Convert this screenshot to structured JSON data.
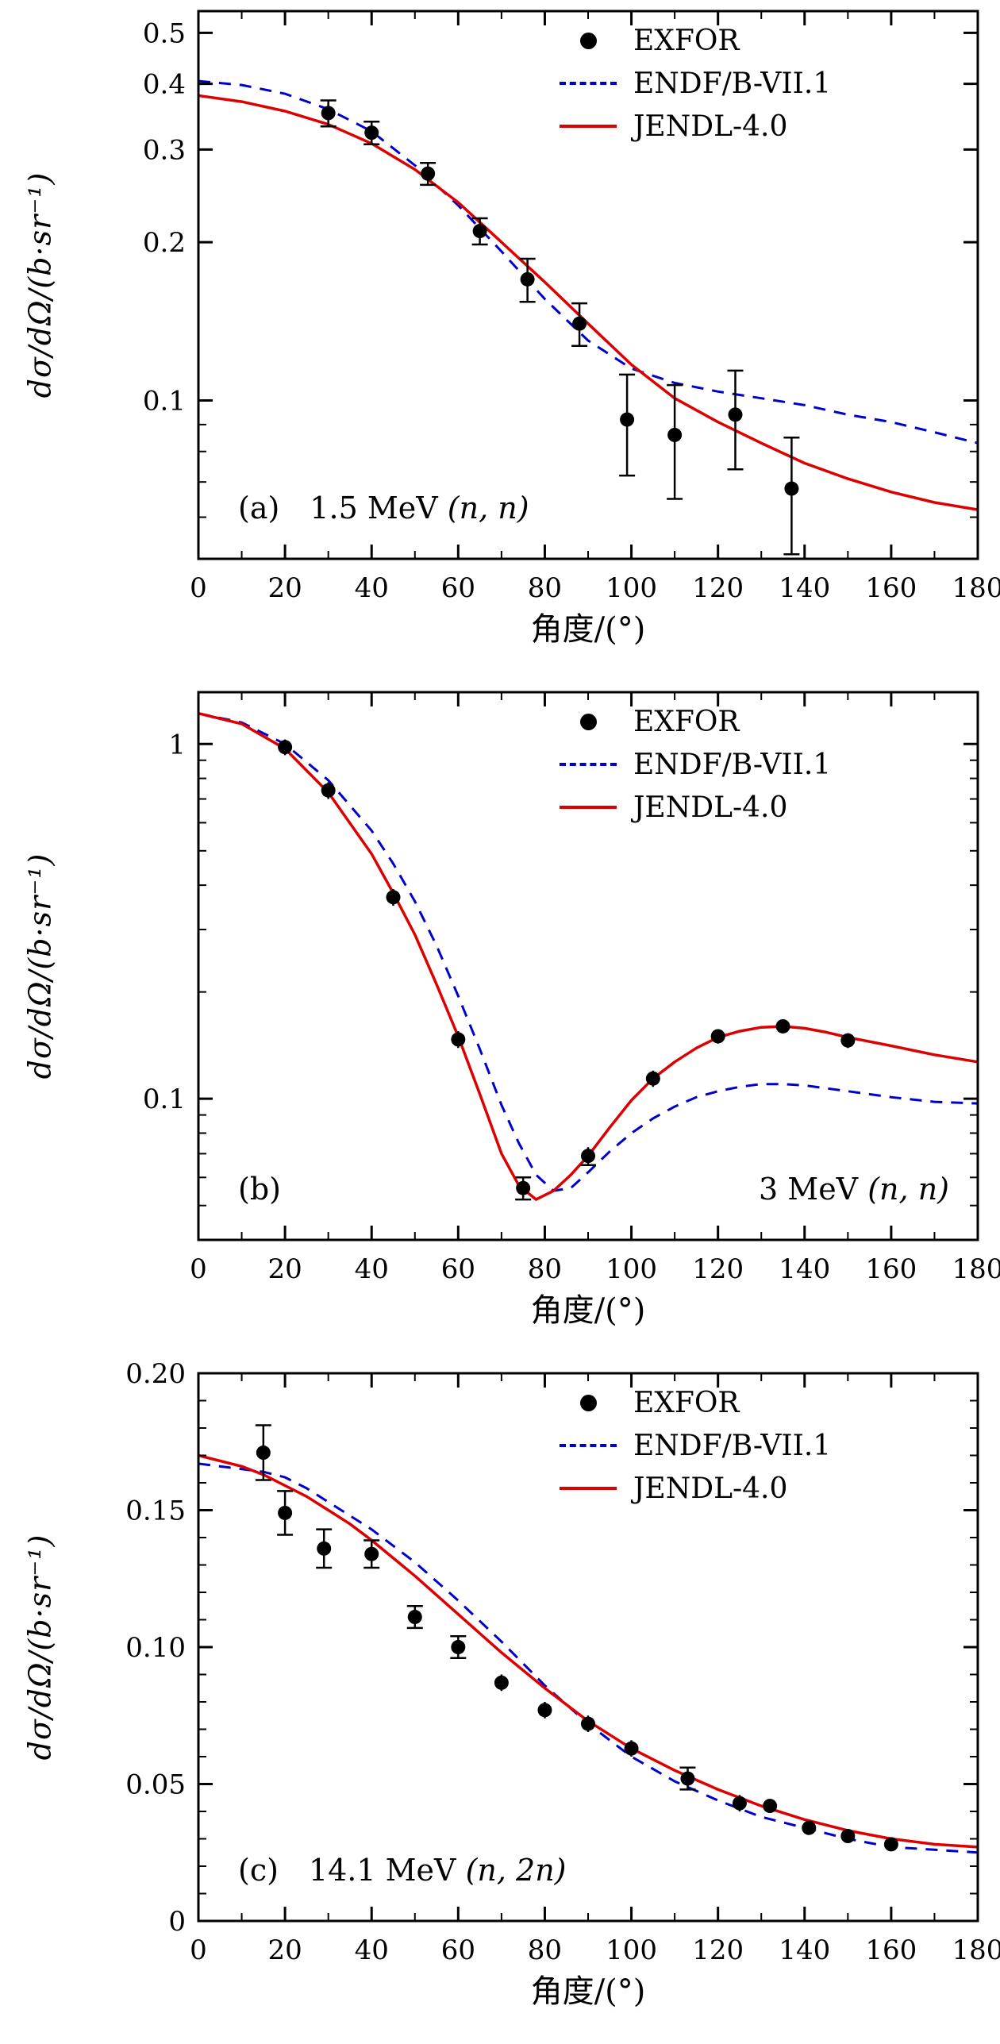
{
  "chart_data": [
    {
      "type": "line",
      "panel": "(a)",
      "energy": "1.5 MeV",
      "reaction": "(n, n)",
      "xlabel": "角度/(°)",
      "ylabel": "dσ/dΩ/(b·sr⁻¹)",
      "xlim": [
        0,
        180
      ],
      "xticks": [
        0,
        20,
        40,
        60,
        80,
        100,
        120,
        140,
        160,
        180
      ],
      "xminor": [
        10,
        30,
        50,
        70,
        90,
        110,
        130,
        150,
        170
      ],
      "yscale": "log",
      "ylim": [
        0.05,
        0.55
      ],
      "yticks": [
        {
          "v": 0.5,
          "label": "0.5"
        },
        {
          "v": 0.4,
          "label": "0.4"
        },
        {
          "v": 0.3,
          "label": "0.3"
        },
        {
          "v": 0.2,
          "label": "0.2"
        },
        {
          "v": 0.1,
          "label": "0.1"
        }
      ],
      "yminor": [
        0.09,
        0.08,
        0.07,
        0.06
      ],
      "legend_position": "top-right",
      "grid": false,
      "series": [
        {
          "name": "EXFOR",
          "style": "points",
          "color": "#000000",
          "points": [
            [
              30,
              0.352,
              0.02
            ],
            [
              40,
              0.323,
              0.016
            ],
            [
              53,
              0.27,
              0.013
            ],
            [
              65,
              0.21,
              0.012
            ],
            [
              76,
              0.17,
              0.016
            ],
            [
              88,
              0.14,
              0.013
            ],
            [
              99,
              0.092,
              0.02
            ],
            [
              110,
              0.086,
              0.021
            ],
            [
              124,
              0.094,
              0.02
            ],
            [
              137,
              0.068,
              0.017
            ]
          ]
        },
        {
          "name": "ENDF/B-VII.1",
          "style": "dashed",
          "color": "#0000cd",
          "x": [
            0,
            10,
            20,
            30,
            40,
            50,
            60,
            70,
            80,
            90,
            100,
            110,
            120,
            130,
            140,
            150,
            160,
            170,
            180
          ],
          "y": [
            0.405,
            0.398,
            0.383,
            0.358,
            0.325,
            0.28,
            0.235,
            0.192,
            0.156,
            0.13,
            0.115,
            0.108,
            0.104,
            0.101,
            0.098,
            0.094,
            0.091,
            0.087,
            0.083
          ]
        },
        {
          "name": "JENDL-4.0",
          "style": "solid",
          "color": "#dd0000",
          "x": [
            0,
            10,
            20,
            30,
            40,
            50,
            60,
            70,
            80,
            90,
            100,
            110,
            120,
            130,
            140,
            150,
            160,
            170,
            180
          ],
          "y": [
            0.38,
            0.37,
            0.355,
            0.335,
            0.308,
            0.275,
            0.238,
            0.2,
            0.168,
            0.14,
            0.117,
            0.101,
            0.091,
            0.083,
            0.076,
            0.071,
            0.067,
            0.064,
            0.062
          ]
        }
      ]
    },
    {
      "type": "line",
      "panel": "(b)",
      "energy": "3 MeV",
      "reaction": "(n, n)",
      "xlabel": "角度/(°)",
      "ylabel": "dσ/dΩ/(b·sr⁻¹)",
      "xlim": [
        0,
        180
      ],
      "xticks": [
        0,
        20,
        40,
        60,
        80,
        100,
        120,
        140,
        160,
        180
      ],
      "xminor": [
        10,
        30,
        50,
        70,
        90,
        110,
        130,
        150,
        170
      ],
      "yscale": "log",
      "ylim": [
        0.04,
        1.4
      ],
      "yticks": [
        {
          "v": 1,
          "label": "1"
        },
        {
          "v": 0.1,
          "label": "0.1"
        }
      ],
      "yminor": [
        0.9,
        0.8,
        0.7,
        0.6,
        0.5,
        0.4,
        0.3,
        0.2,
        0.09,
        0.08,
        0.07,
        0.06,
        0.05
      ],
      "legend_position": "top-right",
      "grid": false,
      "series": [
        {
          "name": "EXFOR",
          "style": "points",
          "color": "#000000",
          "points": [
            [
              20,
              0.98,
              0.05
            ],
            [
              30,
              0.74,
              0.04
            ],
            [
              45,
              0.37,
              0.02
            ],
            [
              60,
              0.147,
              0.008
            ],
            [
              75,
              0.056,
              0.004
            ],
            [
              90,
              0.069,
              0.004
            ],
            [
              105,
              0.114,
              0.006
            ],
            [
              120,
              0.15,
              0.007
            ],
            [
              135,
              0.16,
              0.007
            ],
            [
              150,
              0.146,
              0.007
            ]
          ]
        },
        {
          "name": "ENDF/B-VII.1",
          "style": "dashed",
          "color": "#0000cd",
          "x": [
            0,
            10,
            20,
            30,
            40,
            45,
            50,
            55,
            60,
            65,
            70,
            74,
            78,
            82,
            86,
            90,
            95,
            100,
            105,
            110,
            115,
            120,
            125,
            130,
            135,
            140,
            145,
            150,
            160,
            170,
            180
          ],
          "y": [
            1.22,
            1.15,
            1.0,
            0.79,
            0.57,
            0.46,
            0.36,
            0.27,
            0.195,
            0.138,
            0.096,
            0.075,
            0.061,
            0.055,
            0.056,
            0.062,
            0.071,
            0.08,
            0.088,
            0.095,
            0.101,
            0.105,
            0.108,
            0.11,
            0.11,
            0.109,
            0.107,
            0.105,
            0.101,
            0.098,
            0.097
          ]
        },
        {
          "name": "JENDL-4.0",
          "style": "solid",
          "color": "#dd0000",
          "x": [
            0,
            10,
            20,
            30,
            40,
            45,
            50,
            55,
            60,
            65,
            70,
            74,
            78,
            82,
            86,
            90,
            95,
            100,
            105,
            110,
            115,
            120,
            125,
            130,
            135,
            140,
            145,
            150,
            160,
            170,
            180
          ],
          "y": [
            1.22,
            1.14,
            0.97,
            0.73,
            0.49,
            0.38,
            0.29,
            0.21,
            0.15,
            0.103,
            0.07,
            0.057,
            0.052,
            0.055,
            0.061,
            0.069,
            0.083,
            0.099,
            0.114,
            0.127,
            0.139,
            0.149,
            0.155,
            0.159,
            0.16,
            0.158,
            0.154,
            0.149,
            0.141,
            0.133,
            0.127
          ]
        }
      ]
    },
    {
      "type": "line",
      "panel": "(c)",
      "energy": "14.1 MeV",
      "reaction": "(n, 2n)",
      "xlabel": "角度/(°)",
      "ylabel": "dσ/dΩ/(b·sr⁻¹)",
      "xlim": [
        0,
        180
      ],
      "xticks": [
        0,
        20,
        40,
        60,
        80,
        100,
        120,
        140,
        160,
        180
      ],
      "xminor": [
        10,
        30,
        50,
        70,
        90,
        110,
        130,
        150,
        170
      ],
      "yscale": "linear",
      "ylim": [
        0,
        0.2
      ],
      "yticks": [
        {
          "v": 0.2,
          "label": "0.20"
        },
        {
          "v": 0.15,
          "label": "0.15"
        },
        {
          "v": 0.1,
          "label": "0.10"
        },
        {
          "v": 0.05,
          "label": "0.05"
        },
        {
          "v": 0,
          "label": "0"
        }
      ],
      "yminor": [
        0.01,
        0.02,
        0.03,
        0.04,
        0.06,
        0.07,
        0.08,
        0.09,
        0.11,
        0.12,
        0.13,
        0.14,
        0.16,
        0.17,
        0.18,
        0.19
      ],
      "legend_position": "top-right",
      "grid": false,
      "series": [
        {
          "name": "EXFOR",
          "style": "points",
          "color": "#000000",
          "points": [
            [
              15,
              0.171,
              0.01
            ],
            [
              20,
              0.149,
              0.008
            ],
            [
              29,
              0.136,
              0.007
            ],
            [
              40,
              0.134,
              0.005
            ],
            [
              50,
              0.111,
              0.004
            ],
            [
              60,
              0.1,
              0.004
            ],
            [
              70,
              0.087,
              0.003
            ],
            [
              80,
              0.077,
              0.003
            ],
            [
              90,
              0.072,
              0.003
            ],
            [
              100,
              0.063,
              0.003
            ],
            [
              113,
              0.052,
              0.004
            ],
            [
              125,
              0.043,
              0.003
            ],
            [
              132,
              0.042,
              0.002
            ],
            [
              141,
              0.034,
              0.002
            ],
            [
              150,
              0.031,
              0.002
            ],
            [
              160,
              0.028,
              0.002
            ]
          ]
        },
        {
          "name": "ENDF/B-VII.1",
          "style": "dashed",
          "color": "#0000cd",
          "x": [
            0,
            10,
            15,
            20,
            25,
            30,
            35,
            40,
            50,
            60,
            70,
            80,
            90,
            100,
            110,
            120,
            130,
            140,
            150,
            160,
            170,
            180
          ],
          "y": [
            0.167,
            0.165,
            0.164,
            0.162,
            0.158,
            0.153,
            0.148,
            0.143,
            0.131,
            0.117,
            0.102,
            0.086,
            0.072,
            0.06,
            0.051,
            0.044,
            0.038,
            0.034,
            0.03,
            0.027,
            0.026,
            0.025
          ]
        },
        {
          "name": "JENDL-4.0",
          "style": "solid",
          "color": "#dd0000",
          "x": [
            0,
            10,
            15,
            20,
            25,
            30,
            35,
            40,
            50,
            60,
            70,
            80,
            90,
            100,
            110,
            120,
            130,
            140,
            150,
            160,
            170,
            180
          ],
          "y": [
            0.17,
            0.166,
            0.163,
            0.159,
            0.155,
            0.15,
            0.145,
            0.139,
            0.126,
            0.112,
            0.098,
            0.085,
            0.073,
            0.063,
            0.055,
            0.048,
            0.042,
            0.037,
            0.033,
            0.03,
            0.028,
            0.027
          ]
        }
      ]
    }
  ]
}
